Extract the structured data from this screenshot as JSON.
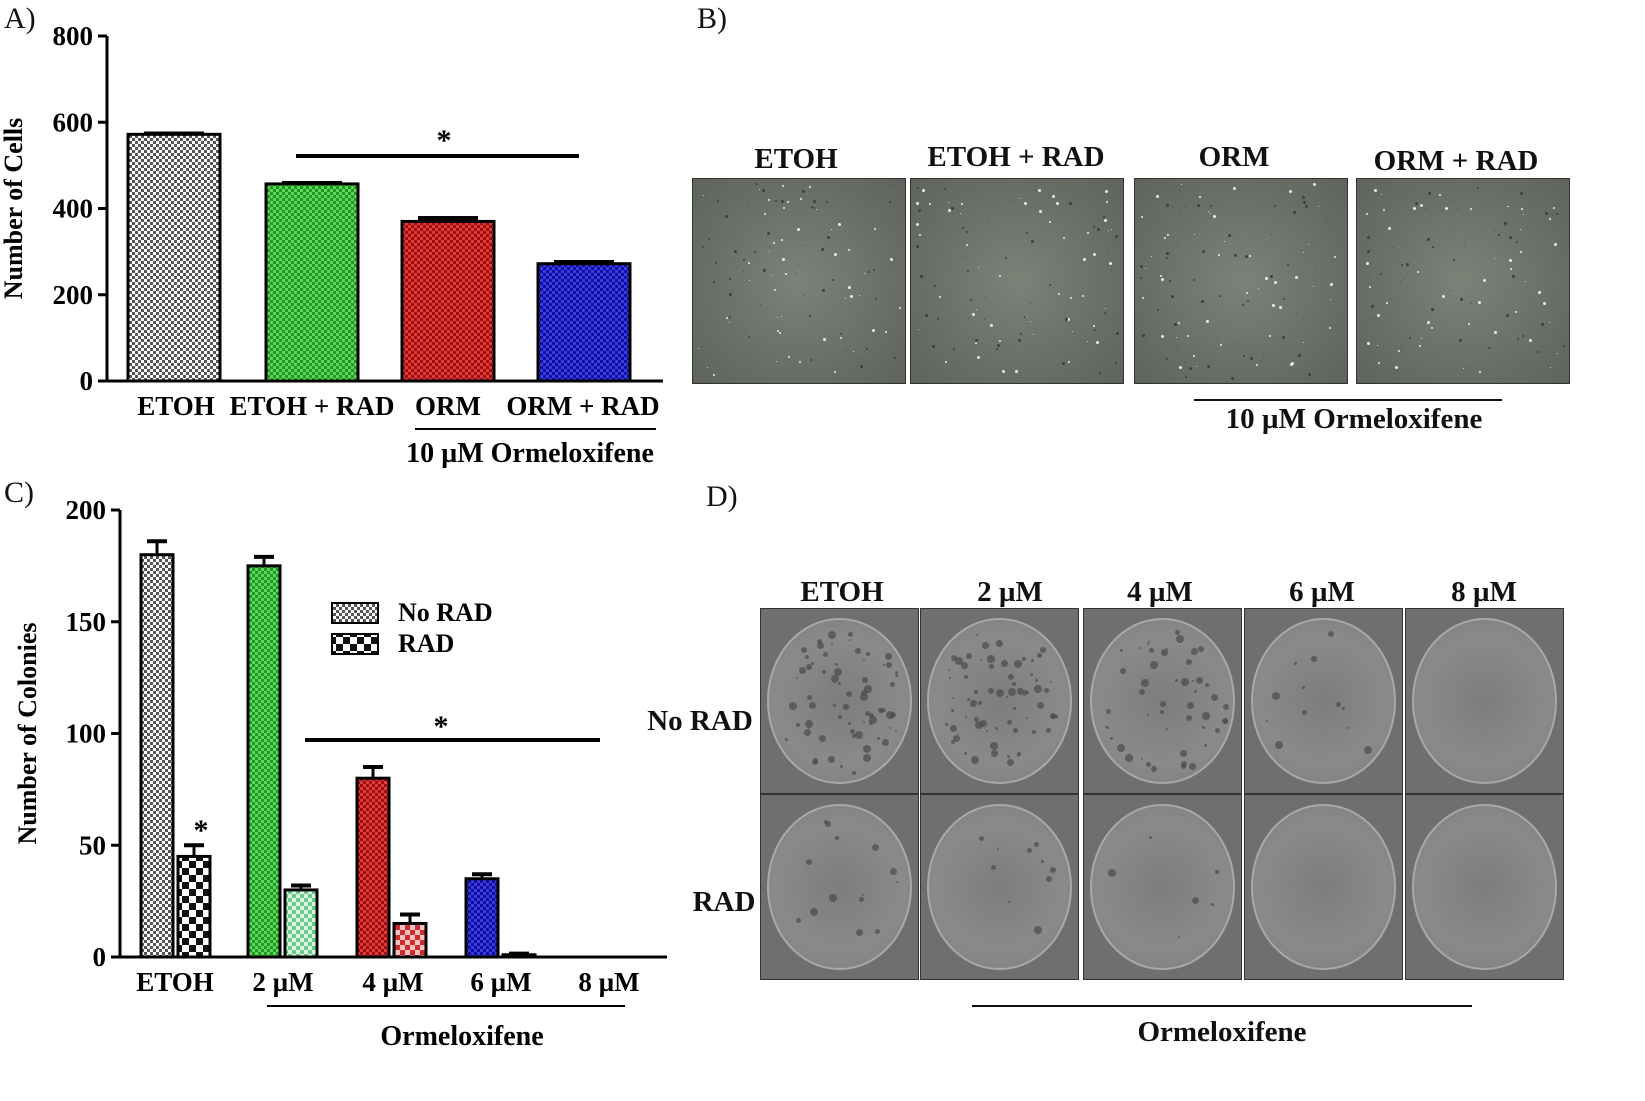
{
  "panels": {
    "a": "A)",
    "b": "B)",
    "c": "C)",
    "d": "D)"
  },
  "chart_data": [
    {
      "type": "bar",
      "ylabel": "Number of Cells",
      "ylim": [
        0,
        800
      ],
      "yticks": [
        0,
        200,
        400,
        600,
        800
      ],
      "categories": [
        "ETOH",
        "ETOH + RAD",
        "ORM",
        "ORM + RAD"
      ],
      "values": [
        572,
        457,
        370,
        272
      ],
      "errors": [
        2,
        2,
        8,
        4
      ],
      "colors": [
        "#f5f5f5",
        "#3dc63d",
        "#d42020",
        "#1f1fc8"
      ],
      "significance": "*",
      "group_label": "10 µM Ormeloxifene"
    },
    {
      "type": "bar",
      "ylabel": "Number of Colonies",
      "ylim": [
        0,
        200
      ],
      "yticks": [
        0,
        50,
        100,
        150,
        200
      ],
      "categories": [
        "ETOH",
        "2 µM",
        "4 µM",
        "6 µM",
        "8 µM"
      ],
      "series": [
        {
          "name": "No RAD",
          "values": [
            180,
            175,
            80,
            35,
            0
          ],
          "errors": [
            6,
            4,
            5,
            2,
            0
          ]
        },
        {
          "name": "RAD",
          "values": [
            45,
            30,
            15,
            1,
            0
          ],
          "errors": [
            5,
            2,
            4,
            0.5,
            0
          ]
        }
      ],
      "colors_no_rad": [
        "#f5f5f5",
        "#3dc63d",
        "#d42020",
        "#1f1fc8",
        "#ffffff"
      ],
      "colors_rad": [
        "#ffffff",
        "#a8e8c0",
        "#e07a7a",
        "#bbbbbb",
        "#ffffff"
      ],
      "annotations": [
        "*",
        "*"
      ],
      "group_label": "Ormeloxifene"
    }
  ],
  "panel_b": {
    "labels": [
      "ETOH",
      "ETOH + RAD",
      "ORM",
      "ORM + RAD"
    ],
    "group_label": "10 µM Ormeloxifene"
  },
  "panel_d": {
    "columns": [
      "ETOH",
      "2 µM",
      "4 µM",
      "6 µM",
      "8 µM"
    ],
    "rows": [
      "No RAD",
      "RAD"
    ],
    "group_label": "Ormeloxifene"
  }
}
